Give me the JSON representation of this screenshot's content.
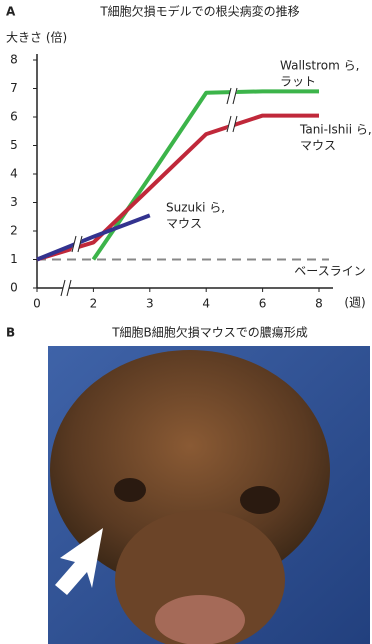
{
  "chart_data": {
    "type": "line",
    "panel_label": "A",
    "title": "T細胞欠損モデルでの根尖病変の推移",
    "y_label": "大きさ (倍)",
    "x_label": "(週)",
    "categories": [
      "0",
      "2",
      "3",
      "4",
      "6",
      "8"
    ],
    "series": [
      {
        "name": [
          "Wallstrom ら,",
          "ラット"
        ],
        "color": "#3cb44a",
        "values": [
          null,
          1,
          3.9,
          6.85,
          6.9,
          6.9
        ]
      },
      {
        "name": [
          "Tani-Ishii ら,",
          "マウス"
        ],
        "color": "#c0283a",
        "values": [
          1,
          1.6,
          3.5,
          5.4,
          6.05,
          6.05
        ]
      },
      {
        "name": [
          "Suzuki ら,",
          "マウス"
        ],
        "color": "#33338f",
        "values": [
          1,
          1.8,
          2.55,
          null,
          null,
          null
        ]
      }
    ],
    "baseline": 1,
    "baseline_label": "ベースライン",
    "ylim": [
      0,
      8
    ],
    "yticks": [
      0,
      1,
      2,
      3,
      4,
      5,
      6,
      7,
      8
    ]
  },
  "panel_b": {
    "label": "B",
    "title": "T細胞B細胞欠損マウスでの膿瘍形成"
  }
}
